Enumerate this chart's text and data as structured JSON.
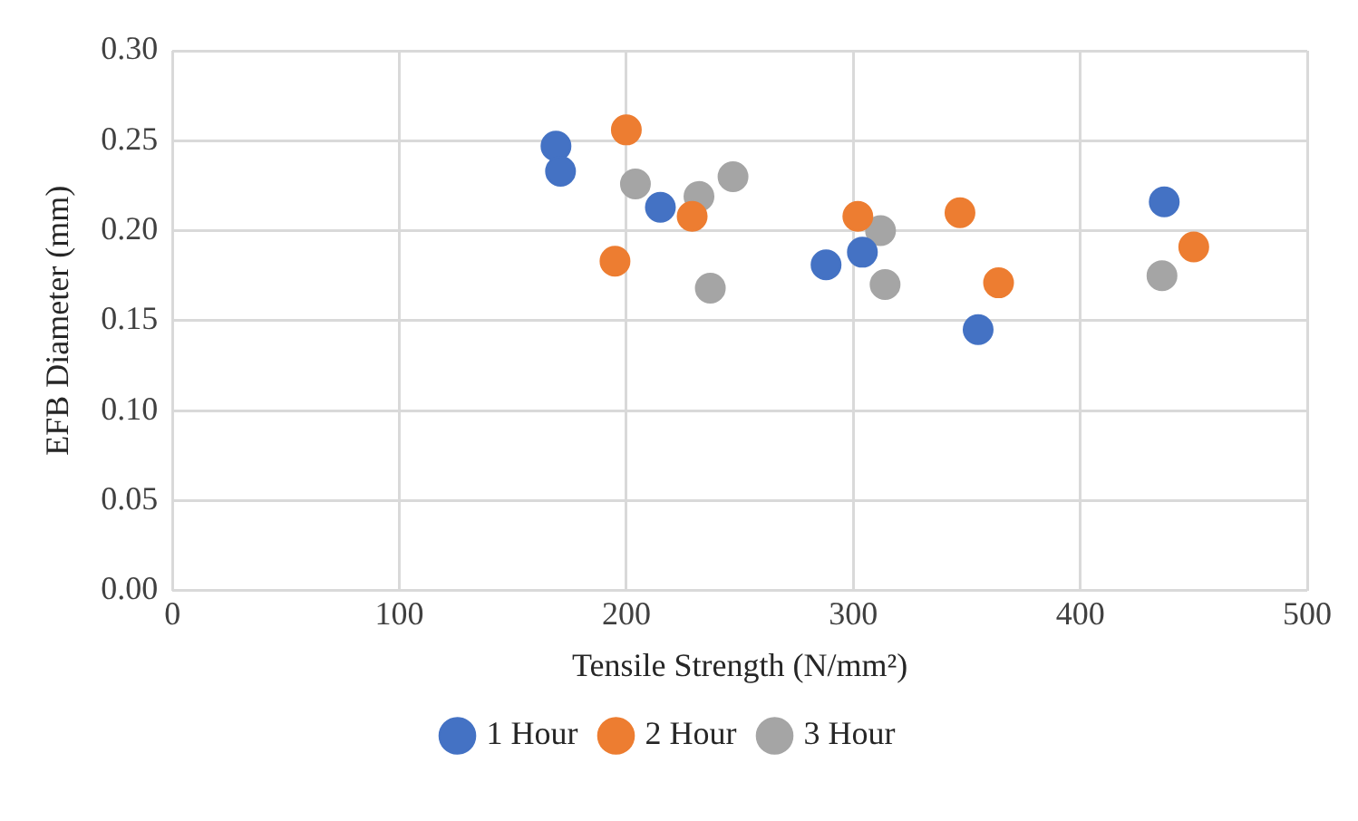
{
  "chart_data": {
    "type": "scatter",
    "xlabel": "Tensile Strength (N/mm²)",
    "ylabel": "EFB Diameter (mm)",
    "xlim": [
      0,
      500
    ],
    "xticks": [
      0,
      100,
      200,
      300,
      400,
      500
    ],
    "ylim": [
      0,
      0.3
    ],
    "yticks": [
      {
        "value": 0,
        "label": "0.00"
      },
      {
        "value": 0.05,
        "label": "0.05"
      },
      {
        "value": 0.1,
        "label": "0.10"
      },
      {
        "value": 0.15,
        "label": "0.15"
      },
      {
        "value": 0.2,
        "label": "0.20"
      },
      {
        "value": 0.25,
        "label": "0.25"
      },
      {
        "value": 0.3,
        "label": "0.30"
      }
    ],
    "grid": true,
    "legend": "bottom",
    "marker": "circle",
    "series": [
      {
        "name": "1 Hour",
        "color": "#4472c4",
        "x": [
          169,
          171,
          215,
          288,
          304,
          355,
          437
        ],
        "values": [
          0.247,
          0.233,
          0.213,
          0.181,
          0.188,
          0.145,
          0.216
        ]
      },
      {
        "name": "2 Hour",
        "color": "#ed7d31",
        "x": [
          200,
          195,
          229,
          302,
          347,
          364,
          450
        ],
        "values": [
          0.256,
          0.183,
          0.208,
          0.208,
          0.21,
          0.171,
          0.191
        ]
      },
      {
        "name": "3 Hour",
        "color": "#a5a5a5",
        "x": [
          204,
          232,
          247,
          237,
          312,
          314,
          436
        ],
        "values": [
          0.226,
          0.219,
          0.23,
          0.168,
          0.2,
          0.17,
          0.175
        ]
      }
    ]
  }
}
